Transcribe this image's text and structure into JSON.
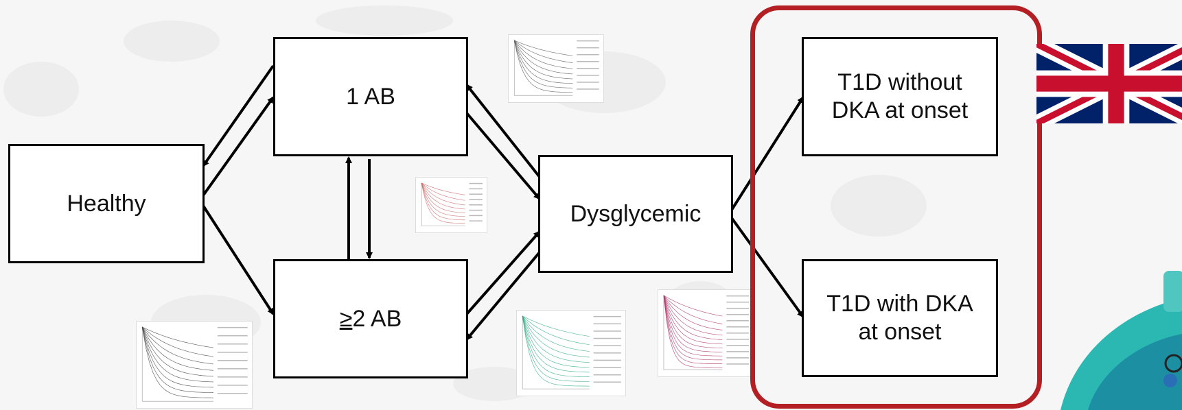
{
  "nodes": {
    "healthy": "Healthy",
    "one_ab": "1 AB",
    "two_ab_symbol": "≥",
    "two_ab_rest": "2 AB",
    "dysglycemic": "Dysglycemic",
    "t1d_without_dka_line1": "T1D without",
    "t1d_without_dka_line2": "DKA at onset",
    "t1d_with_dka_line1": "T1D with DKA",
    "t1d_with_dka_line2": "at onset"
  },
  "colors": {
    "highlight_frame": "#b41f24",
    "flag_blue": "#012169",
    "flag_red": "#c8102e",
    "corner_teal": "#2bb8b3"
  },
  "icons": [
    "uk-flag-icon",
    "corner-logo-icon"
  ]
}
